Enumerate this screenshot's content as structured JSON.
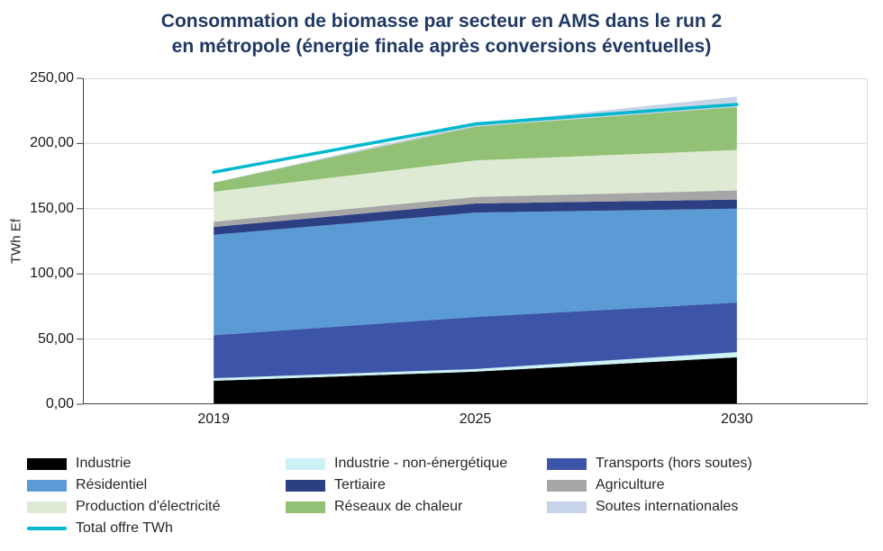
{
  "title": {
    "line1": "Consommation de biomasse par secteur en AMS dans le run 2",
    "line2": "en métropole (énergie finale après conversions éventuelles)"
  },
  "chart_data": {
    "type": "area",
    "stacked": true,
    "grid": true,
    "legend_position": "bottom",
    "ylabel": "TWh Ef",
    "ylim": [
      0,
      250
    ],
    "ytick_step": 50,
    "ytick_labels": [
      "0,00",
      "50,00",
      "100,00",
      "150,00",
      "200,00",
      "250,00"
    ],
    "categories": [
      "2019",
      "2025",
      "2030"
    ],
    "series": [
      {
        "name": "Industrie",
        "color": "#000000",
        "values": [
          18,
          25,
          36
        ]
      },
      {
        "name": "Industrie - non-énergétique",
        "color": "#CDF2F6",
        "values": [
          2,
          2,
          4
        ]
      },
      {
        "name": "Transports (hors soutes)",
        "color": "#3D55A8",
        "values": [
          33,
          40,
          38
        ]
      },
      {
        "name": "Résidentiel",
        "color": "#5B9BD5",
        "values": [
          77,
          80,
          72
        ]
      },
      {
        "name": "Tertiaire",
        "color": "#2C3F82",
        "values": [
          6,
          7,
          7
        ]
      },
      {
        "name": "Agriculture",
        "color": "#A6A6A6",
        "values": [
          4,
          5,
          7
        ]
      },
      {
        "name": "Production d'électricité",
        "color": "#DEEAD3",
        "values": [
          23,
          28,
          31
        ]
      },
      {
        "name": "Réseaux de chaleur",
        "color": "#92C175",
        "values": [
          7,
          26,
          33
        ]
      },
      {
        "name": "Soutes internationales",
        "color": "#C7D3E8",
        "values": [
          0,
          2,
          8
        ]
      }
    ],
    "line_series": {
      "name": "Total offre TWh",
      "color": "#00B9CE",
      "values": [
        178,
        215,
        230
      ]
    },
    "colors": {
      "title": "#1F3864",
      "gridline": "#D9D9D9",
      "axis": "#404040"
    }
  }
}
